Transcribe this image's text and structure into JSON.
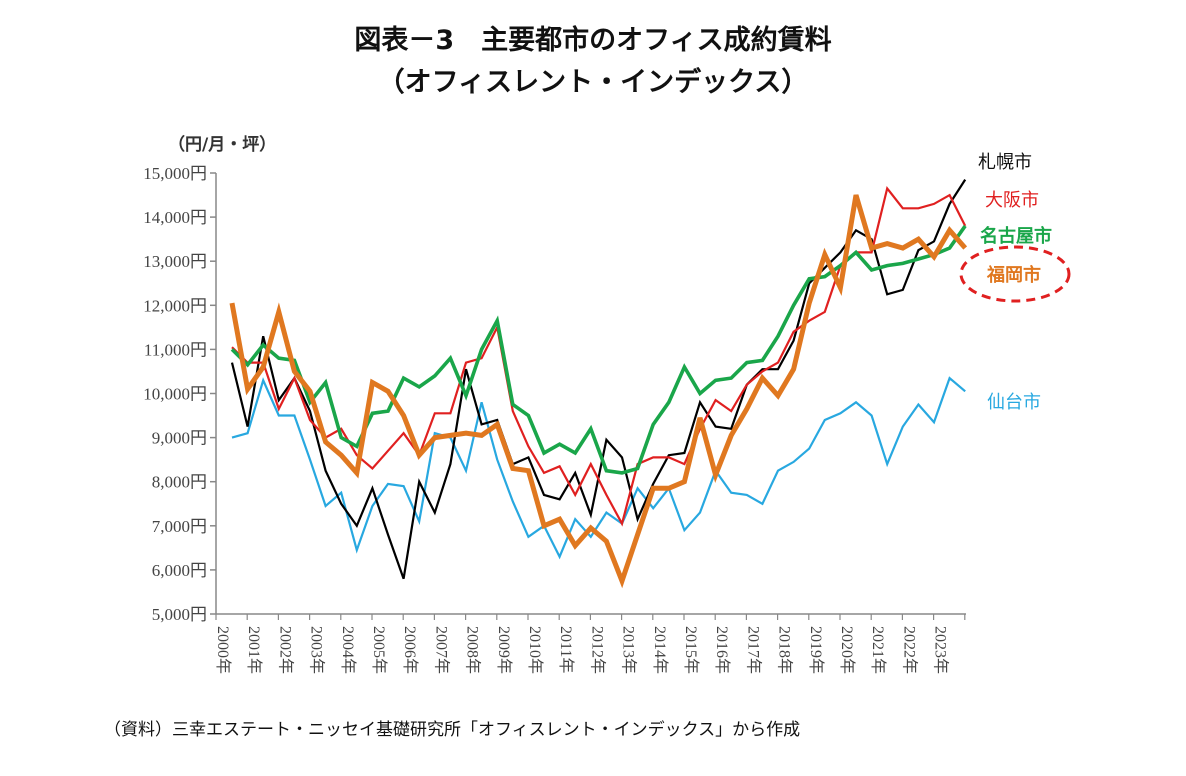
{
  "header": {
    "title": "図表－3　主要都市のオフィス成約賃料",
    "subtitle": "（オフィスレント・インデックス）"
  },
  "footer": {
    "source": "（資料）三幸エステート・ニッセイ基礎研究所「オフィスレント・インデックス」から作成"
  },
  "chart_data": {
    "type": "line",
    "title": "図表－3　主要都市のオフィス成約賃料（オフィスレント・インデックス）",
    "xlabel": "",
    "ylabel": "（円/月・坪）",
    "ylim": [
      5000,
      15000
    ],
    "yticks": [
      5000,
      6000,
      7000,
      8000,
      9000,
      10000,
      11000,
      12000,
      13000,
      14000,
      15000
    ],
    "ytick_labels": [
      "5,000円",
      "6,000円",
      "7,000円",
      "8,000円",
      "9,000円",
      "10,000円",
      "11,000円",
      "12,000円",
      "13,000円",
      "14,000円",
      "15,000円"
    ],
    "xtick_labels": [
      "2000年",
      "2001年",
      "2002年",
      "2003年",
      "2004年",
      "2005年",
      "2006年",
      "2007年",
      "2008年",
      "2009年",
      "2010年",
      "2011年",
      "2012年",
      "2013年",
      "2014年",
      "2015年",
      "2016年",
      "2017年",
      "2018年",
      "2019年",
      "2020年",
      "2021年",
      "2022年",
      "2023年"
    ],
    "x_frequency": "semiannual",
    "grid": false,
    "legend": "right (labels at line ends)",
    "highlight": {
      "series": "福岡市",
      "style": "red dashed ellipse",
      "color": "#e02020"
    },
    "series": [
      {
        "name": "札幌市",
        "color": "#000000",
        "width": "thin",
        "values": [
          10700,
          9250,
          11300,
          9850,
          10350,
          9600,
          8250,
          7500,
          7000,
          7850,
          6800,
          5800,
          8000,
          7300,
          8400,
          10550,
          9300,
          9400,
          8400,
          8550,
          7700,
          7600,
          8200,
          7250,
          8950,
          8550,
          7150,
          7950,
          8600,
          8650,
          9800,
          9250,
          9200,
          10200,
          10550,
          10550,
          11200,
          12500,
          12850,
          13200,
          13700,
          13500,
          12250,
          12350,
          13250,
          13450,
          14300,
          14850
        ]
      },
      {
        "name": "大阪市",
        "color": "#e02020",
        "width": "thin",
        "values": [
          11050,
          10700,
          10700,
          9650,
          10350,
          9400,
          9000,
          9200,
          8600,
          8300,
          8700,
          9100,
          8600,
          9550,
          9550,
          10700,
          10800,
          11500,
          9600,
          8800,
          8200,
          8350,
          7700,
          8400,
          7700,
          7050,
          8400,
          8550,
          8550,
          8400,
          9200,
          9850,
          9600,
          10200,
          10500,
          10700,
          11400,
          11650,
          11850,
          12900,
          13200,
          13200,
          14650,
          14200,
          14200,
          14300,
          14500,
          13800
        ]
      },
      {
        "name": "名古屋市",
        "color": "#1aa64a",
        "width": "medium",
        "values": [
          11000,
          10650,
          11100,
          10800,
          10750,
          9800,
          10250,
          9000,
          8800,
          9550,
          9600,
          10350,
          10150,
          10400,
          10800,
          9950,
          11000,
          11650,
          9750,
          9500,
          8650,
          8850,
          8650,
          9200,
          8250,
          8200,
          8300,
          9300,
          9800,
          10600,
          10000,
          10300,
          10350,
          10700,
          10750,
          11300,
          12000,
          12600,
          12650,
          12900,
          13200,
          12800,
          12900,
          12950,
          13050,
          13150,
          13300,
          13800
        ]
      },
      {
        "name": "福岡市",
        "color": "#e07820",
        "width": "thick",
        "values": [
          12050,
          10100,
          10600,
          11850,
          10500,
          10050,
          8900,
          8600,
          8200,
          10250,
          10050,
          9500,
          8600,
          9000,
          9050,
          9100,
          9050,
          9300,
          8300,
          8250,
          7000,
          7150,
          6550,
          6950,
          6650,
          5750,
          6800,
          7850,
          7850,
          8000,
          9450,
          8150,
          9050,
          9650,
          10350,
          9950,
          10550,
          12050,
          13150,
          12400,
          14500,
          13300,
          13400,
          13300,
          13500,
          13100,
          13700,
          13300
        ]
      },
      {
        "name": "仙台市",
        "color": "#28a8e0",
        "width": "thin",
        "values": [
          9000,
          9100,
          10300,
          9500,
          9500,
          8500,
          7450,
          7750,
          6450,
          7450,
          7950,
          7900,
          7100,
          9100,
          9000,
          8250,
          9800,
          8500,
          7550,
          6750,
          7000,
          6300,
          7150,
          6750,
          7300,
          7050,
          7850,
          7400,
          7850,
          6900,
          7300,
          8250,
          7750,
          7700,
          7500,
          8250,
          8450,
          8750,
          9400,
          9550,
          9800,
          9500,
          8400,
          9250,
          9750,
          9350,
          10350,
          10050
        ]
      }
    ]
  }
}
